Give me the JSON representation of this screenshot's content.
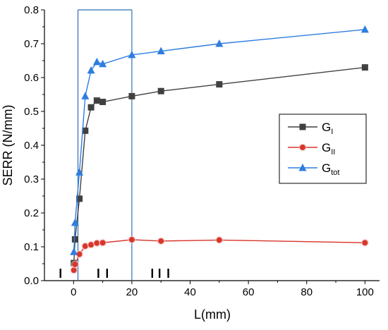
{
  "chart_data": {
    "type": "line",
    "title": "",
    "xlabel": "L(mm)",
    "ylabel": "SERR (N/mm)",
    "xlim": [
      -10,
      105
    ],
    "ylim": [
      0,
      0.8
    ],
    "xticks": [
      0,
      20,
      40,
      60,
      80,
      100
    ],
    "yticks": [
      0.0,
      0.1,
      0.2,
      0.3,
      0.4,
      0.5,
      0.6,
      0.7,
      0.8
    ],
    "grid": false,
    "legend_position": "right-middle",
    "legend_entries": [
      {
        "base": "G",
        "sub": "I"
      },
      {
        "base": "G",
        "sub": "II"
      },
      {
        "base": "G",
        "sub": "tot"
      }
    ],
    "series": [
      {
        "name": "G_I",
        "color": "#404040",
        "marker": "square",
        "points": [
          [
            0.1,
            0.052
          ],
          [
            0.5,
            0.122
          ],
          [
            2,
            0.242
          ],
          [
            4,
            0.443
          ],
          [
            6,
            0.512
          ],
          [
            8,
            0.532
          ],
          [
            10,
            0.528
          ],
          [
            20,
            0.545
          ],
          [
            30,
            0.56
          ],
          [
            50,
            0.58
          ],
          [
            100,
            0.63
          ]
        ]
      },
      {
        "name": "G_II",
        "color": "#d9362b",
        "marker": "circle",
        "points": [
          [
            0.1,
            0.031
          ],
          [
            0.5,
            0.048
          ],
          [
            2,
            0.078
          ],
          [
            4,
            0.102
          ],
          [
            6,
            0.106
          ],
          [
            8,
            0.111
          ],
          [
            10,
            0.112
          ],
          [
            20,
            0.121
          ],
          [
            30,
            0.117
          ],
          [
            50,
            0.12
          ],
          [
            100,
            0.112
          ]
        ]
      },
      {
        "name": "G_tot",
        "color": "#2e7de0",
        "marker": "triangle",
        "points": [
          [
            0.1,
            0.085
          ],
          [
            0.5,
            0.171
          ],
          [
            2,
            0.32
          ],
          [
            4,
            0.545
          ],
          [
            6,
            0.621
          ],
          [
            8,
            0.646
          ],
          [
            10,
            0.64
          ],
          [
            20,
            0.667
          ],
          [
            30,
            0.678
          ],
          [
            50,
            0.7
          ],
          [
            100,
            0.742
          ]
        ]
      }
    ],
    "highlight_region": {
      "x_start": 1.5,
      "x_end": 20,
      "color": "#2f6fb5"
    },
    "bar_ticks": [
      -4.5,
      8.5,
      11.5,
      27,
      29.5,
      32.5
    ]
  }
}
